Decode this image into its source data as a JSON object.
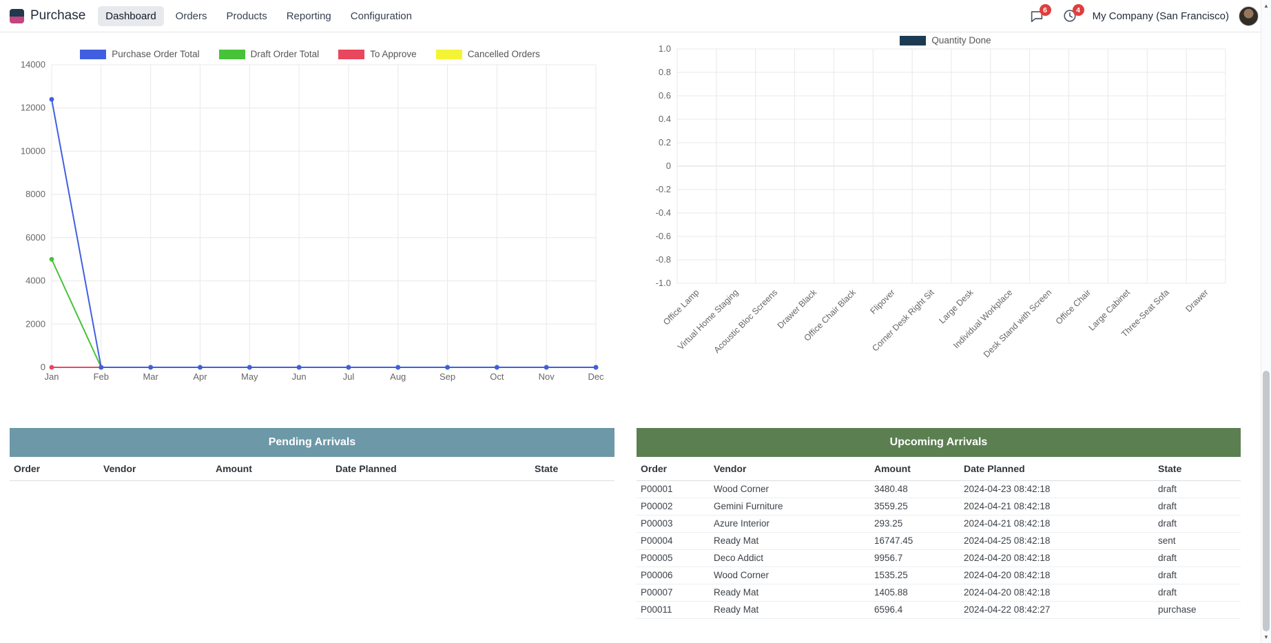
{
  "app": {
    "name": "Purchase",
    "menu": [
      "Dashboard",
      "Orders",
      "Products",
      "Reporting",
      "Configuration"
    ],
    "active_menu": "Dashboard",
    "messages_badge": "6",
    "activities_badge": "4",
    "badge_color": "#e03e3e",
    "company": "My Company (San Francisco)"
  },
  "chart_data": [
    {
      "type": "line",
      "title": "",
      "x": [
        "Jan",
        "Feb",
        "Mar",
        "Apr",
        "May",
        "Jun",
        "Jul",
        "Aug",
        "Sep",
        "Oct",
        "Nov",
        "Dec"
      ],
      "series": [
        {
          "name": "Purchase Order Total",
          "color": "#3f5fe0",
          "values": [
            12400,
            0,
            0,
            0,
            0,
            0,
            0,
            0,
            0,
            0,
            0,
            0
          ]
        },
        {
          "name": "Draft Order Total",
          "color": "#47c339",
          "values": [
            5000,
            0,
            0,
            0,
            0,
            0,
            0,
            0,
            0,
            0,
            0,
            0
          ]
        },
        {
          "name": "To Approve",
          "color": "#e8475d",
          "values": [
            0,
            0,
            0,
            0,
            0,
            0,
            0,
            0,
            0,
            0,
            0,
            0
          ]
        },
        {
          "name": "Cancelled Orders",
          "color": "#f4f436",
          "values": [
            0,
            0,
            0,
            0,
            0,
            0,
            0,
            0,
            0,
            0,
            0,
            0
          ]
        }
      ],
      "ylim": [
        0,
        14000
      ],
      "ytick_step": 2000,
      "legend_position": "top",
      "grid": true
    },
    {
      "type": "bar",
      "title": "",
      "categories": [
        "Office Lamp",
        "Virtual Home Staging",
        "Acoustic Bloc Screens",
        "Drawer Black",
        "Office Chair Black",
        "Flipover",
        "Corner Desk Right Sit",
        "Large Desk",
        "Individual Workplace",
        "Desk Stand with Screen",
        "Office Chair",
        "Large Cabinet",
        "Three-Seat Sofa",
        "Drawer"
      ],
      "series": [
        {
          "name": "Quantity Done",
          "color": "#1c3a52",
          "values": [
            0,
            0,
            0,
            0,
            0,
            0,
            0,
            0,
            0,
            0,
            0,
            0,
            0,
            0
          ]
        }
      ],
      "ylim": [
        -1.0,
        1.0
      ],
      "ytick_step": 0.2,
      "legend_position": "top",
      "grid": true
    }
  ],
  "tables": {
    "pending": {
      "title": "Pending Arrivals",
      "header_color": "#6c98a8",
      "columns": [
        "Order",
        "Vendor",
        "Amount",
        "Date Planned",
        "State"
      ],
      "rows": []
    },
    "upcoming": {
      "title": "Upcoming Arrivals",
      "header_color": "#5c7f52",
      "columns": [
        "Order",
        "Vendor",
        "Amount",
        "Date Planned",
        "State"
      ],
      "rows": [
        [
          "P00001",
          "Wood Corner",
          "3480.48",
          "2024-04-23 08:42:18",
          "draft"
        ],
        [
          "P00002",
          "Gemini Furniture",
          "3559.25",
          "2024-04-21 08:42:18",
          "draft"
        ],
        [
          "P00003",
          "Azure Interior",
          "293.25",
          "2024-04-21 08:42:18",
          "draft"
        ],
        [
          "P00004",
          "Ready Mat",
          "16747.45",
          "2024-04-25 08:42:18",
          "sent"
        ],
        [
          "P00005",
          "Deco Addict",
          "9956.7",
          "2024-04-20 08:42:18",
          "draft"
        ],
        [
          "P00006",
          "Wood Corner",
          "1535.25",
          "2024-04-20 08:42:18",
          "draft"
        ],
        [
          "P00007",
          "Ready Mat",
          "1405.88",
          "2024-04-20 08:42:18",
          "draft"
        ],
        [
          "P00011",
          "Ready Mat",
          "6596.4",
          "2024-04-22 08:42:27",
          "purchase"
        ]
      ]
    }
  },
  "scrollbar": {
    "up_arrow": "▲",
    "down_arrow": "▼"
  }
}
